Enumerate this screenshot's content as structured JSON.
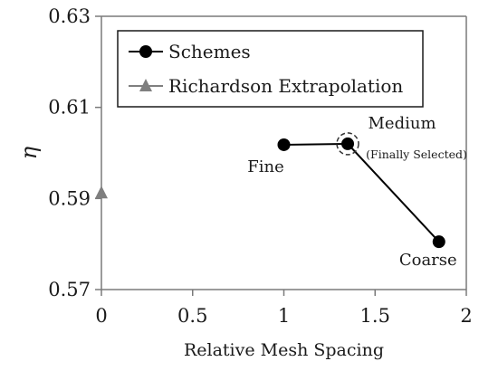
{
  "chart_data": {
    "type": "scatter",
    "xlabel": "Relative Mesh Spacing",
    "ylabel": "η",
    "xlim": [
      0,
      2
    ],
    "ylim": [
      0.57,
      0.63
    ],
    "x_ticks": [
      "0",
      "0.5",
      "1",
      "1.5",
      "2"
    ],
    "y_ticks": [
      "0.57",
      "0.59",
      "0.61",
      "0.63"
    ],
    "grid": false,
    "legend_position": "top-left",
    "series": [
      {
        "name": "Schemes",
        "marker": "circle",
        "line": true,
        "color": "#000000",
        "points": [
          {
            "x": 1.0,
            "y": 0.6018,
            "label": "Fine"
          },
          {
            "x": 1.35,
            "y": 0.602,
            "label": "Medium",
            "sublabel": "(Finally Selected)"
          },
          {
            "x": 1.85,
            "y": 0.5805,
            "label": "Coarse"
          }
        ]
      },
      {
        "name": "Richardson Extrapolation",
        "marker": "triangle",
        "line": false,
        "color": "#7f7f7f",
        "points": [
          {
            "x": 0,
            "y": 0.5912
          }
        ]
      }
    ]
  }
}
